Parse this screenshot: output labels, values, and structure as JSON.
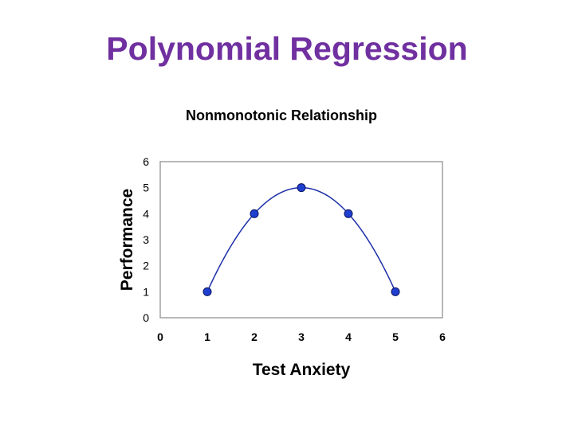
{
  "slide": {
    "title": "Polynomial Regression",
    "title_color": "#7030a0"
  },
  "chart_data": {
    "type": "scatter",
    "title": "Nonmonotonic Relationship",
    "xlabel": "Test Anxiety",
    "ylabel": "Performance",
    "xlim": [
      0,
      6
    ],
    "ylim": [
      0,
      6
    ],
    "xticks": [
      "0",
      "1",
      "2",
      "3",
      "4",
      "5",
      "6"
    ],
    "yticks": [
      "0",
      "1",
      "2",
      "3",
      "4",
      "5",
      "6"
    ],
    "grid": false,
    "legend": "none",
    "series": [
      {
        "x": [
          1,
          2,
          3,
          4,
          5
        ],
        "y": [
          1,
          4,
          5,
          4,
          1
        ],
        "marker_color": "#1f3fd0",
        "trendline": "quadratic",
        "line_color": "#1c2fa8"
      }
    ]
  }
}
